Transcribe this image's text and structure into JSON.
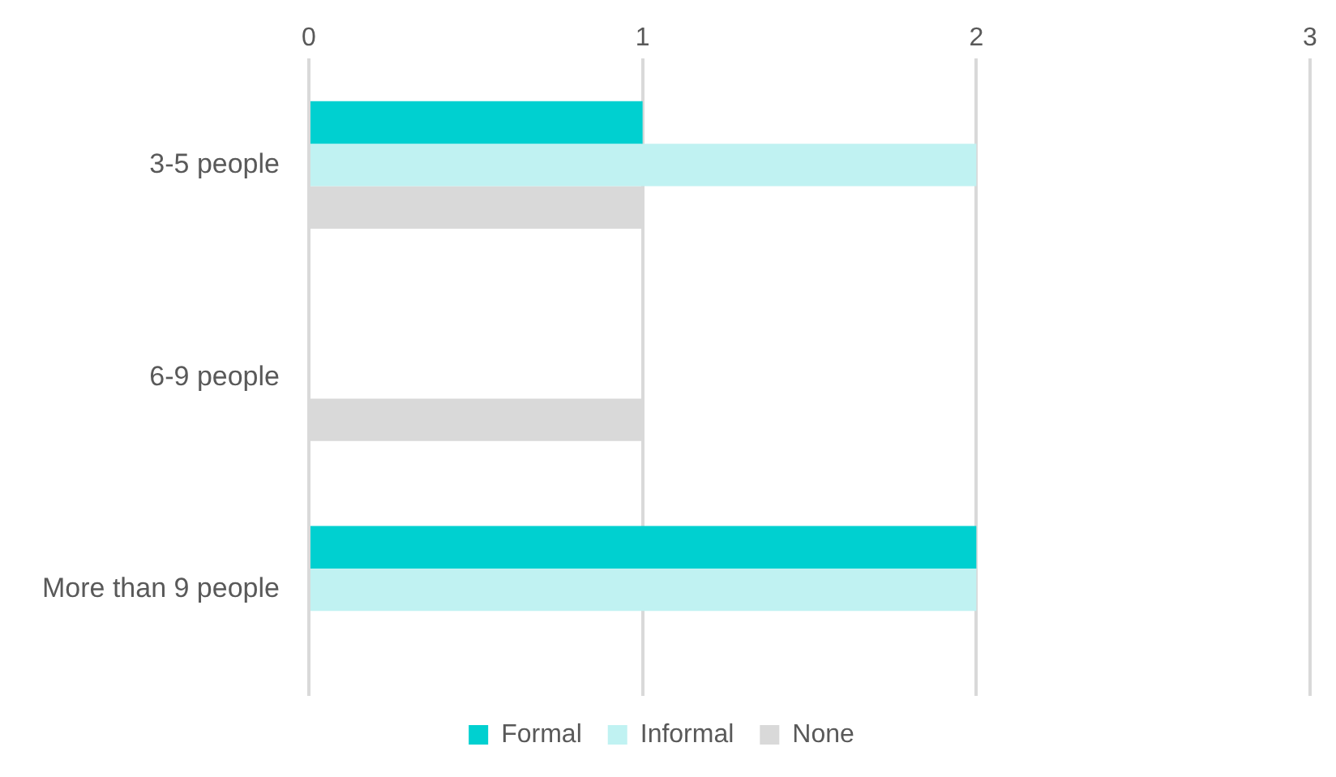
{
  "chart_data": {
    "type": "bar",
    "orientation": "horizontal",
    "categories": [
      "3-5 people",
      "6-9 people",
      "More than 9 people"
    ],
    "series": [
      {
        "name": "Formal",
        "color": "#00d0d0",
        "values": [
          1,
          0,
          2
        ]
      },
      {
        "name": "Informal",
        "color": "#c0f2f2",
        "values": [
          2,
          0,
          2
        ]
      },
      {
        "name": "None",
        "color": "#d9d9d9",
        "values": [
          1,
          1,
          0
        ]
      }
    ],
    "xlim": [
      0,
      3
    ],
    "xticks": [
      0,
      1,
      2,
      3
    ],
    "grid": "x",
    "legend": "bottom"
  }
}
